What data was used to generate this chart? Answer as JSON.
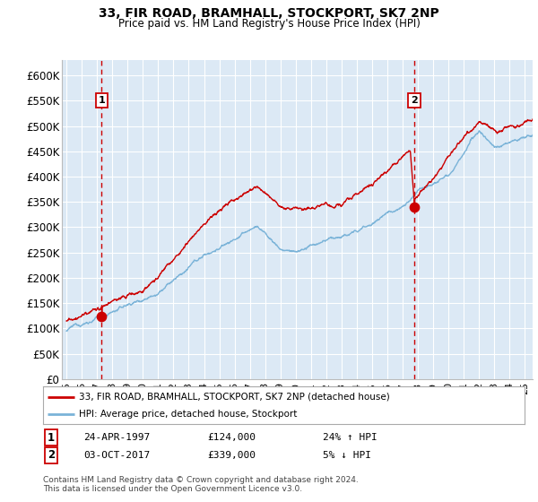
{
  "title": "33, FIR ROAD, BRAMHALL, STOCKPORT, SK7 2NP",
  "subtitle": "Price paid vs. HM Land Registry's House Price Index (HPI)",
  "legend_line1": "33, FIR ROAD, BRAMHALL, STOCKPORT, SK7 2NP (detached house)",
  "legend_line2": "HPI: Average price, detached house, Stockport",
  "label1_date": "24-APR-1997",
  "label1_price": "£124,000",
  "label1_hpi": "24% ↑ HPI",
  "label2_date": "03-OCT-2017",
  "label2_price": "£339,000",
  "label2_hpi": "5% ↓ HPI",
  "footnote": "Contains HM Land Registry data © Crown copyright and database right 2024.\nThis data is licensed under the Open Government Licence v3.0.",
  "sale1_date_num": 1997.31,
  "sale1_value": 124000,
  "sale2_date_num": 2017.76,
  "sale2_value": 339000,
  "hpi_color": "#7ab3d8",
  "price_color": "#cc0000",
  "vline_color": "#cc0000",
  "bg_color": "#dce9f5",
  "grid_color": "#ffffff",
  "ylim": [
    0,
    630000
  ],
  "xlim_start": 1994.7,
  "xlim_end": 2025.5,
  "yticks": [
    0,
    50000,
    100000,
    150000,
    200000,
    250000,
    300000,
    350000,
    400000,
    450000,
    500000,
    550000,
    600000
  ],
  "xticks": [
    1995,
    1996,
    1997,
    1998,
    1999,
    2000,
    2001,
    2002,
    2003,
    2004,
    2005,
    2006,
    2007,
    2008,
    2009,
    2010,
    2011,
    2012,
    2013,
    2014,
    2015,
    2016,
    2017,
    2018,
    2019,
    2020,
    2021,
    2022,
    2023,
    2024,
    2025
  ],
  "xtick_labels": [
    "95",
    "96",
    "97",
    "98",
    "99",
    "00",
    "01",
    "02",
    "03",
    "04",
    "05",
    "06",
    "07",
    "08",
    "09",
    "10",
    "11",
    "12",
    "13",
    "14",
    "15",
    "16",
    "17",
    "18",
    "19",
    "20",
    "21",
    "22",
    "23",
    "24",
    "25"
  ]
}
